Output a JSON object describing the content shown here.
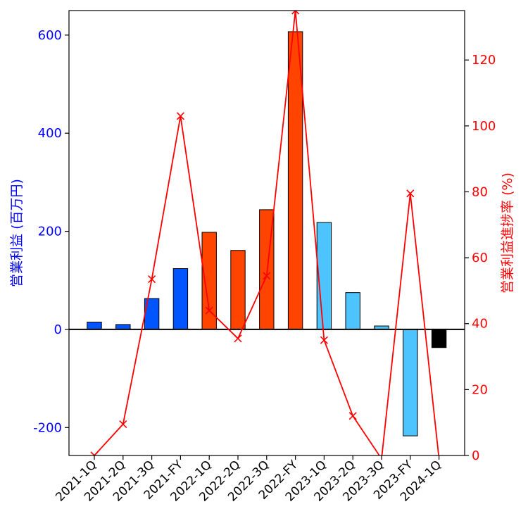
{
  "chart_data": {
    "type": "bar",
    "categories": [
      "2021-1Q",
      "2021-2Q",
      "2021-3Q",
      "2021-FY",
      "2022-1Q",
      "2022-2Q",
      "2022-3Q",
      "2022-FY",
      "2023-1Q",
      "2023-2Q",
      "2023-3Q",
      "2023-FY",
      "2024-1Q"
    ],
    "series": [
      {
        "name": "",
        "kind": "bar",
        "axis": "left",
        "values": [
          15,
          10,
          63,
          124,
          198,
          161,
          244,
          607,
          218,
          75,
          7,
          -217,
          -37
        ],
        "colors": [
          "#0055ff",
          "#0055ff",
          "#0055ff",
          "#0055ff",
          "#ff4400",
          "#ff4400",
          "#ff4400",
          "#ff4400",
          "#4ec4ff",
          "#4ec4ff",
          "#4ec4ff",
          "#4ec4ff",
          "#000000"
        ]
      },
      {
        "name": "",
        "kind": "line",
        "axis": "right",
        "marker": "x",
        "color": "#ff0000",
        "values": [
          0,
          9.5,
          53.5,
          103,
          44,
          35.5,
          54.5,
          135,
          35,
          12,
          -1,
          79.5,
          -1
        ]
      }
    ],
    "ylabel": "営業利益 (百万円)",
    "ylabel_right": "営業利益進捗率 (%)",
    "ylim": [
      -257,
      650
    ],
    "ylim_right": [
      0,
      135
    ],
    "yticks": [
      -200,
      0,
      200,
      400,
      600
    ],
    "yticks_right": [
      0,
      20,
      40,
      60,
      80,
      100,
      120
    ],
    "zero_line": true,
    "grid": false,
    "legend": "none",
    "colors": {
      "left_axis": "#0000ff",
      "right_axis": "#ff0000",
      "bar_edge": "#000000",
      "line": "#ff0000"
    }
  }
}
